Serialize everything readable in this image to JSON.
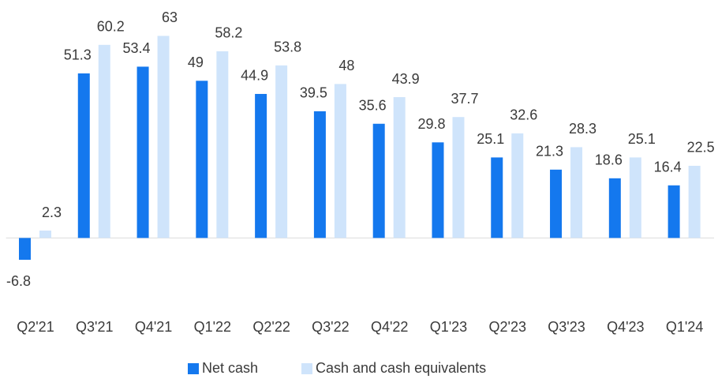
{
  "chart_data": {
    "type": "bar",
    "categories": [
      "Q2'21",
      "Q3'21",
      "Q4'21",
      "Q1'22",
      "Q2'22",
      "Q3'22",
      "Q4'22",
      "Q1'23",
      "Q2'23",
      "Q3'23",
      "Q4'23",
      "Q1'24"
    ],
    "series": [
      {
        "name": "Net cash",
        "color": "#1478ee",
        "values": [
          -6.8,
          51.3,
          53.4,
          49,
          44.9,
          39.5,
          35.6,
          29.8,
          25.1,
          21.3,
          18.6,
          16.4
        ]
      },
      {
        "name": "Cash and cash equivalents",
        "color": "#cfe4fb",
        "values": [
          2.3,
          60.2,
          63,
          58.2,
          53.8,
          48,
          43.9,
          37.7,
          32.6,
          28.3,
          25.1,
          22.5
        ]
      }
    ],
    "ylim": [
      -10,
      70
    ],
    "legend": "bottom"
  }
}
